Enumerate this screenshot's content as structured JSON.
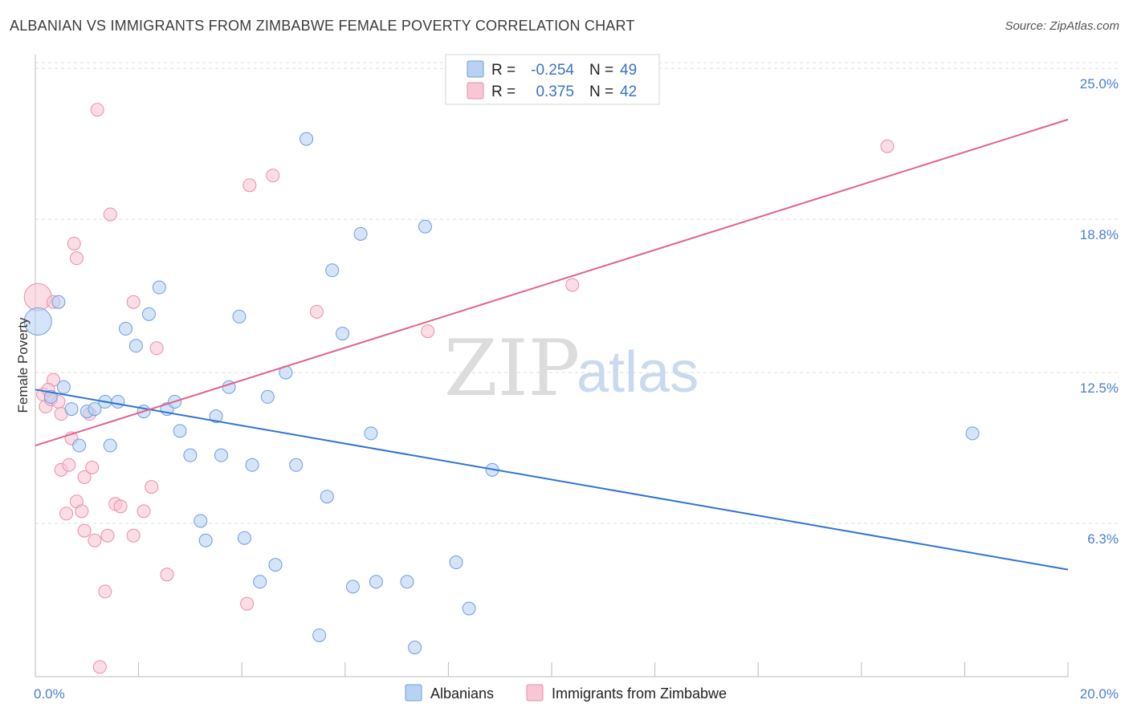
{
  "title": "ALBANIAN VS IMMIGRANTS FROM ZIMBABWE FEMALE POVERTY CORRELATION CHART",
  "source": "Source: ZipAtlas.com",
  "watermark": {
    "zip": "ZIP",
    "atlas": "atlas"
  },
  "colors": {
    "blue_fill": "#b9d2f3",
    "blue_stroke": "#6d9ede",
    "blue_line": "#2f74d0",
    "pink_fill": "#f8c6d5",
    "pink_stroke": "#e98fab",
    "pink_line": "#e0628c",
    "grid": "#dddddd",
    "tick_text": "#4a7fd0"
  },
  "legend": {
    "rows": [
      {
        "r_label": "R =",
        "r_value": "-0.254",
        "n_label": "N =",
        "n_value": "49"
      },
      {
        "r_label": "R =",
        "r_value": "0.375",
        "n_label": "N =",
        "n_value": "42"
      }
    ]
  },
  "bottom_legend": [
    "Albanians",
    "Immigrants from Zimbabwe"
  ],
  "chart_data": {
    "type": "scatter",
    "title": "ALBANIAN VS IMMIGRANTS FROM ZIMBABWE FEMALE POVERTY CORRELATION CHART",
    "xlabel": "",
    "ylabel": "Female Poverty",
    "xlim": [
      0,
      20
    ],
    "ylim": [
      0,
      25.7
    ],
    "x_ticks": [
      {
        "value": 0,
        "label": "0.0%"
      },
      {
        "value": 20,
        "label": "20.0%"
      }
    ],
    "y_ticks": [
      {
        "value": 6.3,
        "label": "6.3%"
      },
      {
        "value": 12.5,
        "label": "12.5%"
      },
      {
        "value": 18.8,
        "label": "18.8%"
      },
      {
        "value": 25.0,
        "label": "25.0%"
      }
    ],
    "grid": true,
    "legend_position": "top-center",
    "series": [
      {
        "name": "Albanians",
        "color": "#6d9ede",
        "trend": {
          "x": [
            0,
            20
          ],
          "y": [
            11.8,
            4.4
          ]
        },
        "points": [
          {
            "x": 0.05,
            "y": 14.6,
            "big": true
          },
          {
            "x": 0.45,
            "y": 15.4
          },
          {
            "x": 0.55,
            "y": 11.9
          },
          {
            "x": 0.7,
            "y": 11.0
          },
          {
            "x": 0.85,
            "y": 9.5
          },
          {
            "x": 1.0,
            "y": 10.9
          },
          {
            "x": 1.15,
            "y": 11.0
          },
          {
            "x": 1.35,
            "y": 11.3
          },
          {
            "x": 1.45,
            "y": 9.5
          },
          {
            "x": 1.6,
            "y": 11.3
          },
          {
            "x": 1.75,
            "y": 14.3
          },
          {
            "x": 1.95,
            "y": 13.6
          },
          {
            "x": 2.1,
            "y": 10.9
          },
          {
            "x": 2.2,
            "y": 14.9
          },
          {
            "x": 2.4,
            "y": 16.0
          },
          {
            "x": 2.55,
            "y": 11.0
          },
          {
            "x": 2.7,
            "y": 11.3
          },
          {
            "x": 2.8,
            "y": 10.1
          },
          {
            "x": 3.0,
            "y": 9.1
          },
          {
            "x": 3.2,
            "y": 6.4
          },
          {
            "x": 3.3,
            "y": 5.6
          },
          {
            "x": 3.5,
            "y": 10.7
          },
          {
            "x": 3.6,
            "y": 9.1
          },
          {
            "x": 3.75,
            "y": 11.9
          },
          {
            "x": 3.95,
            "y": 14.8
          },
          {
            "x": 4.05,
            "y": 5.7
          },
          {
            "x": 4.2,
            "y": 8.7
          },
          {
            "x": 4.35,
            "y": 3.9
          },
          {
            "x": 4.5,
            "y": 11.5
          },
          {
            "x": 4.65,
            "y": 4.6
          },
          {
            "x": 4.85,
            "y": 12.5
          },
          {
            "x": 5.05,
            "y": 8.7
          },
          {
            "x": 5.25,
            "y": 22.1
          },
          {
            "x": 5.5,
            "y": 1.7
          },
          {
            "x": 5.65,
            "y": 7.4
          },
          {
            "x": 5.75,
            "y": 16.7
          },
          {
            "x": 5.95,
            "y": 14.1
          },
          {
            "x": 6.15,
            "y": 3.7
          },
          {
            "x": 6.3,
            "y": 18.2
          },
          {
            "x": 6.5,
            "y": 10.0
          },
          {
            "x": 6.6,
            "y": 3.9
          },
          {
            "x": 7.2,
            "y": 3.9
          },
          {
            "x": 7.35,
            "y": 1.2
          },
          {
            "x": 7.55,
            "y": 18.5
          },
          {
            "x": 8.15,
            "y": 4.7
          },
          {
            "x": 8.4,
            "y": 2.8
          },
          {
            "x": 8.85,
            "y": 8.5
          },
          {
            "x": 18.15,
            "y": 10.0
          },
          {
            "x": 0.3,
            "y": 11.5
          }
        ]
      },
      {
        "name": "Immigrants from Zimbabwe",
        "color": "#e98fab",
        "trend": {
          "x": [
            0,
            20
          ],
          "y": [
            9.5,
            22.9
          ]
        },
        "points": [
          {
            "x": 0.05,
            "y": 15.6,
            "big": true
          },
          {
            "x": 0.15,
            "y": 11.6
          },
          {
            "x": 0.2,
            "y": 11.1
          },
          {
            "x": 0.3,
            "y": 11.4
          },
          {
            "x": 0.35,
            "y": 15.4
          },
          {
            "x": 0.35,
            "y": 12.2
          },
          {
            "x": 0.45,
            "y": 11.3
          },
          {
            "x": 0.5,
            "y": 8.5
          },
          {
            "x": 0.5,
            "y": 10.8
          },
          {
            "x": 0.6,
            "y": 6.7
          },
          {
            "x": 0.65,
            "y": 8.7
          },
          {
            "x": 0.7,
            "y": 9.8
          },
          {
            "x": 0.75,
            "y": 17.8
          },
          {
            "x": 0.8,
            "y": 7.2
          },
          {
            "x": 0.8,
            "y": 17.2
          },
          {
            "x": 0.9,
            "y": 6.8
          },
          {
            "x": 0.95,
            "y": 8.2
          },
          {
            "x": 0.95,
            "y": 6.0
          },
          {
            "x": 1.05,
            "y": 10.8
          },
          {
            "x": 1.1,
            "y": 8.6
          },
          {
            "x": 1.15,
            "y": 5.6
          },
          {
            "x": 1.2,
            "y": 23.3
          },
          {
            "x": 1.25,
            "y": 0.4
          },
          {
            "x": 1.35,
            "y": 3.5
          },
          {
            "x": 1.4,
            "y": 5.8
          },
          {
            "x": 1.45,
            "y": 19.0
          },
          {
            "x": 1.55,
            "y": 7.1
          },
          {
            "x": 1.65,
            "y": 7.0
          },
          {
            "x": 1.9,
            "y": 5.8
          },
          {
            "x": 1.9,
            "y": 15.4
          },
          {
            "x": 2.1,
            "y": 6.8
          },
          {
            "x": 2.25,
            "y": 7.8
          },
          {
            "x": 2.35,
            "y": 13.5
          },
          {
            "x": 2.55,
            "y": 4.2
          },
          {
            "x": 4.1,
            "y": 3.0
          },
          {
            "x": 4.15,
            "y": 20.2
          },
          {
            "x": 4.6,
            "y": 20.6
          },
          {
            "x": 5.45,
            "y": 15.0
          },
          {
            "x": 7.6,
            "y": 14.2
          },
          {
            "x": 10.4,
            "y": 16.1
          },
          {
            "x": 16.5,
            "y": 21.8
          },
          {
            "x": 0.25,
            "y": 11.8
          }
        ]
      }
    ]
  }
}
